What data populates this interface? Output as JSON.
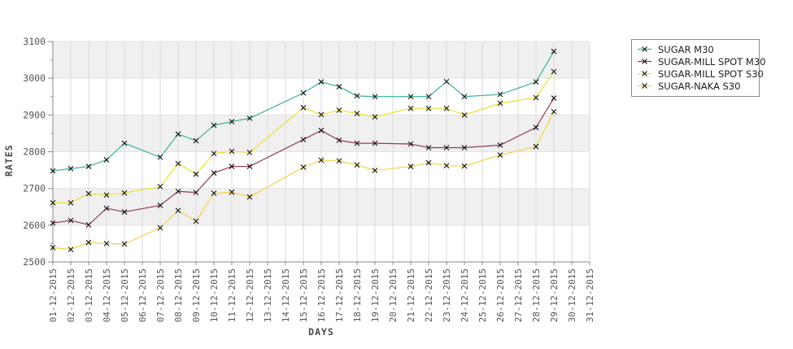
{
  "chart_data": {
    "type": "line",
    "title": "",
    "xlabel": "DAYS",
    "ylabel": "RATES",
    "ylim": [
      2500,
      3100
    ],
    "y_major_ticks": [
      2500,
      2600,
      2700,
      2800,
      2900,
      3000,
      3100
    ],
    "y_minor_tick_step": 50,
    "grid": true,
    "plot_band_fill": "#f0f0f0",
    "marker": "x",
    "marker_color": "#111111",
    "legend_position": "top-right-outside",
    "x_tick_labels": [
      "01-12-2015",
      "02-12-2015",
      "03-12-2015",
      "04-12-2015",
      "05-12-2015",
      "06-12-2015",
      "07-12-2015",
      "08-12-2015",
      "09-12-2015",
      "10-12-2015",
      "11-12-2015",
      "12-12-2015",
      "13-12-2015",
      "14-12-2015",
      "15-12-2015",
      "16-12-2015",
      "17-12-2015",
      "18-12-2015",
      "19-12-2015",
      "20-12-2015",
      "21-12-2015",
      "22-12-2015",
      "23-12-2015",
      "24-12-2015",
      "25-12-2015",
      "26-12-2015",
      "27-12-2015",
      "28-12-2015",
      "29-12-2015",
      "30-12-2015",
      "31-12-2015"
    ],
    "series": [
      {
        "name": "SUGAR M30",
        "color": "#3cb09e",
        "points": [
          [
            1,
            2748
          ],
          [
            2,
            2754
          ],
          [
            3,
            2760
          ],
          [
            4,
            2778
          ],
          [
            5,
            2823
          ],
          [
            7,
            2785
          ],
          [
            8,
            2848
          ],
          [
            9,
            2830
          ],
          [
            10,
            2872
          ],
          [
            11,
            2882
          ],
          [
            12,
            2891
          ],
          [
            15,
            2960
          ],
          [
            16,
            2990
          ],
          [
            17,
            2977
          ],
          [
            18,
            2952
          ],
          [
            19,
            2950
          ],
          [
            21,
            2950
          ],
          [
            22,
            2950
          ],
          [
            23,
            2991
          ],
          [
            24,
            2950
          ],
          [
            26,
            2956
          ],
          [
            28,
            2990
          ],
          [
            29,
            3073
          ]
        ]
      },
      {
        "name": "SUGAR-MILL SPOT M30",
        "color": "#93395c",
        "points": [
          [
            1,
            2606
          ],
          [
            2,
            2613
          ],
          [
            3,
            2601
          ],
          [
            4,
            2646
          ],
          [
            5,
            2636
          ],
          [
            7,
            2654
          ],
          [
            8,
            2692
          ],
          [
            9,
            2689
          ],
          [
            10,
            2742
          ],
          [
            11,
            2760
          ],
          [
            12,
            2760
          ],
          [
            15,
            2833
          ],
          [
            16,
            2858
          ],
          [
            17,
            2831
          ],
          [
            18,
            2823
          ],
          [
            19,
            2823
          ],
          [
            21,
            2821
          ],
          [
            22,
            2811
          ],
          [
            23,
            2811
          ],
          [
            24,
            2811
          ],
          [
            26,
            2818
          ],
          [
            28,
            2866
          ],
          [
            29,
            2946
          ]
        ]
      },
      {
        "name": "SUGAR-MILL SPOT S30",
        "color": "#e9e12f",
        "points": [
          [
            1,
            2661
          ],
          [
            2,
            2661
          ],
          [
            3,
            2686
          ],
          [
            4,
            2682
          ],
          [
            5,
            2688
          ],
          [
            7,
            2705
          ],
          [
            8,
            2768
          ],
          [
            9,
            2739
          ],
          [
            10,
            2795
          ],
          [
            11,
            2801
          ],
          [
            12,
            2798
          ],
          [
            15,
            2920
          ],
          [
            16,
            2901
          ],
          [
            17,
            2913
          ],
          [
            18,
            2904
          ],
          [
            19,
            2895
          ],
          [
            21,
            2918
          ],
          [
            22,
            2918
          ],
          [
            23,
            2918
          ],
          [
            24,
            2900
          ],
          [
            26,
            2932
          ],
          [
            28,
            2947
          ],
          [
            29,
            3018
          ]
        ]
      },
      {
        "name": "SUGAR-NAKA S30",
        "color": "#f5d04c",
        "points": [
          [
            1,
            2539
          ],
          [
            2,
            2534
          ],
          [
            3,
            2553
          ],
          [
            4,
            2550
          ],
          [
            5,
            2549
          ],
          [
            7,
            2593
          ],
          [
            8,
            2640
          ],
          [
            9,
            2611
          ],
          [
            10,
            2687
          ],
          [
            11,
            2690
          ],
          [
            12,
            2677
          ],
          [
            15,
            2758
          ],
          [
            16,
            2777
          ],
          [
            17,
            2775
          ],
          [
            18,
            2764
          ],
          [
            19,
            2749
          ],
          [
            21,
            2760
          ],
          [
            22,
            2770
          ],
          [
            23,
            2762
          ],
          [
            24,
            2761
          ],
          [
            26,
            2791
          ],
          [
            28,
            2814
          ],
          [
            29,
            2909
          ]
        ]
      }
    ]
  }
}
